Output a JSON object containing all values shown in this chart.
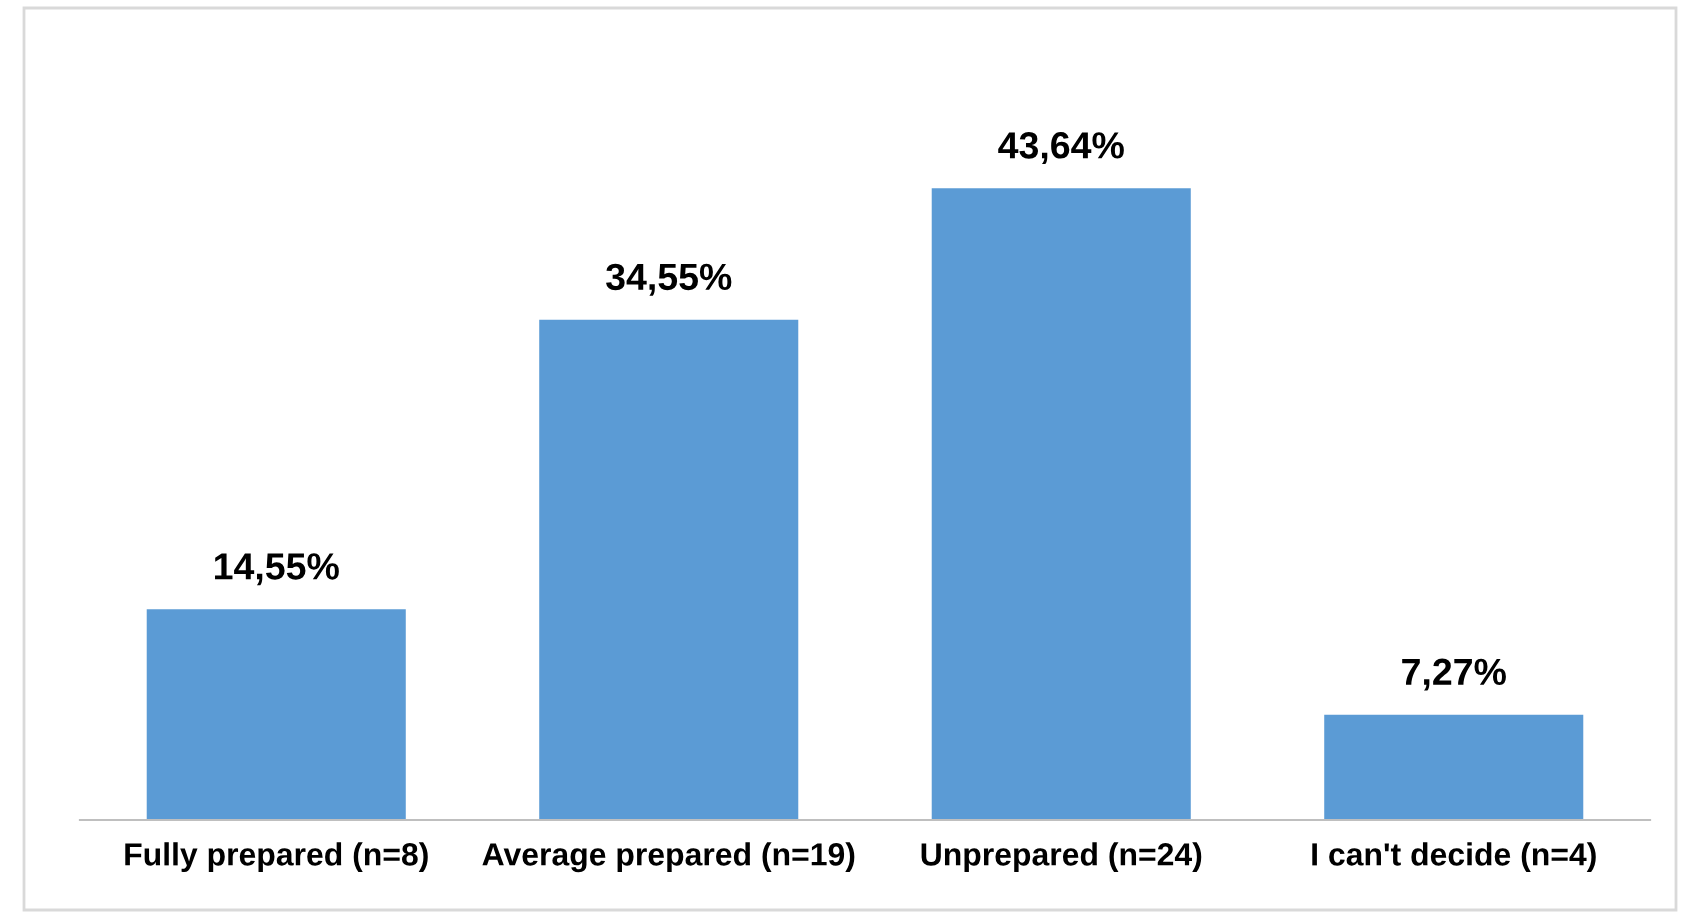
{
  "chart_data": {
    "type": "bar",
    "categories": [
      "Fully prepared (n=8)",
      "Average prepared (n=19)",
      "Unprepared (n=24)",
      "I can't decide (n=4)"
    ],
    "values": [
      14.55,
      34.55,
      43.64,
      7.27
    ],
    "value_labels": [
      "14,55%",
      "34,55%",
      "43,64%",
      "7,27%"
    ],
    "color": "#5b9bd5",
    "grid": false,
    "legend": false
  }
}
